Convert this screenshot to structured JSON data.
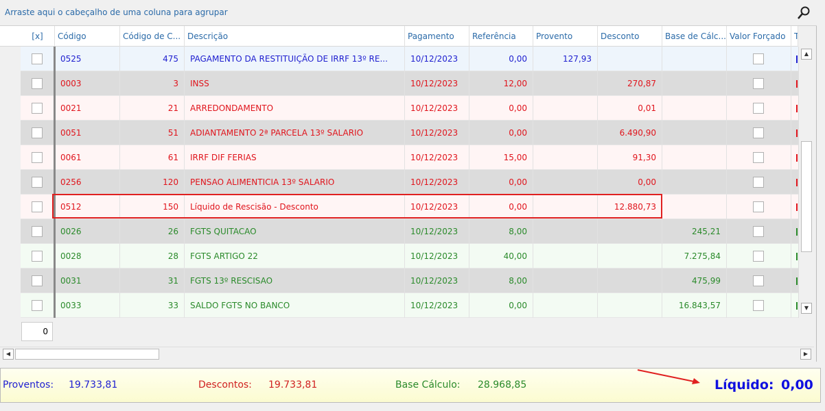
{
  "group_hint": "Arraste aqui o cabeçalho de uma coluna para agrupar",
  "columns": [
    "[x]",
    "Código",
    "Código de C...",
    "Descrição",
    "Pagamento",
    "Referência",
    "Provento",
    "Desconto",
    "Base de Cálc...",
    "Valor Forçado",
    "Tipo"
  ],
  "rows": [
    {
      "codigo": "0525",
      "cod_c": "475",
      "descricao": "PAGAMENTO DA RESTITUIÇÃO DE IRRF 13º RE...",
      "pagamento": "10/12/2023",
      "referencia": "0,00",
      "provento": "127,93",
      "desconto": "",
      "base": "",
      "tipo": "provento"
    },
    {
      "codigo": "0003",
      "cod_c": "3",
      "descricao": "INSS",
      "pagamento": "10/12/2023",
      "referencia": "12,00",
      "provento": "",
      "desconto": "270,87",
      "base": "",
      "tipo": "desconto"
    },
    {
      "codigo": "0021",
      "cod_c": "21",
      "descricao": "ARREDONDAMENTO",
      "pagamento": "10/12/2023",
      "referencia": "0,00",
      "provento": "",
      "desconto": "0,01",
      "base": "",
      "tipo": "desconto"
    },
    {
      "codigo": "0051",
      "cod_c": "51",
      "descricao": "ADIANTAMENTO 2ª PARCELA 13º SALARIO",
      "pagamento": "10/12/2023",
      "referencia": "0,00",
      "provento": "",
      "desconto": "6.490,90",
      "base": "",
      "tipo": "desconto"
    },
    {
      "codigo": "0061",
      "cod_c": "61",
      "descricao": "IRRF DIF FERIAS",
      "pagamento": "10/12/2023",
      "referencia": "15,00",
      "provento": "",
      "desconto": "91,30",
      "base": "",
      "tipo": "desconto"
    },
    {
      "codigo": "0256",
      "cod_c": "120",
      "descricao": "PENSAO ALIMENTICIA 13º SALARIO",
      "pagamento": "10/12/2023",
      "referencia": "0,00",
      "provento": "",
      "desconto": "0,00",
      "base": "",
      "tipo": "desconto"
    },
    {
      "codigo": "0512",
      "cod_c": "150",
      "descricao": "Líquido de Rescisão - Desconto",
      "pagamento": "10/12/2023",
      "referencia": "0,00",
      "provento": "",
      "desconto": "12.880,73",
      "base": "",
      "tipo": "desconto"
    },
    {
      "codigo": "0026",
      "cod_c": "26",
      "descricao": "FGTS QUITACAO",
      "pagamento": "10/12/2023",
      "referencia": "8,00",
      "provento": "",
      "desconto": "",
      "base": "245,21",
      "tipo": "base"
    },
    {
      "codigo": "0028",
      "cod_c": "28",
      "descricao": "FGTS ARTIGO 22",
      "pagamento": "10/12/2023",
      "referencia": "40,00",
      "provento": "",
      "desconto": "",
      "base": "7.275,84",
      "tipo": "base"
    },
    {
      "codigo": "0031",
      "cod_c": "31",
      "descricao": "FGTS 13º RESCISAO",
      "pagamento": "10/12/2023",
      "referencia": "8,00",
      "provento": "",
      "desconto": "",
      "base": "475,99",
      "tipo": "base"
    },
    {
      "codigo": "0033",
      "cod_c": "33",
      "descricao": "SALDO FGTS NO BANCO",
      "pagamento": "10/12/2023",
      "referencia": "0,00",
      "provento": "",
      "desconto": "",
      "base": "16.843,57",
      "tipo": "base"
    }
  ],
  "row_count": "0",
  "summary": {
    "proventos_label": "Proventos:",
    "proventos": "19.733,81",
    "descontos_label": "Descontos:",
    "descontos": "19.733,81",
    "base_label": "Base Cálculo:",
    "base": "28.968,85",
    "liquido_label": "Líquido:",
    "liquido": "0,00"
  },
  "colors": {
    "provento": "#2020d0",
    "desconto": "#e0141c",
    "base": "#2a8a2a",
    "highlight": "#e02020"
  }
}
